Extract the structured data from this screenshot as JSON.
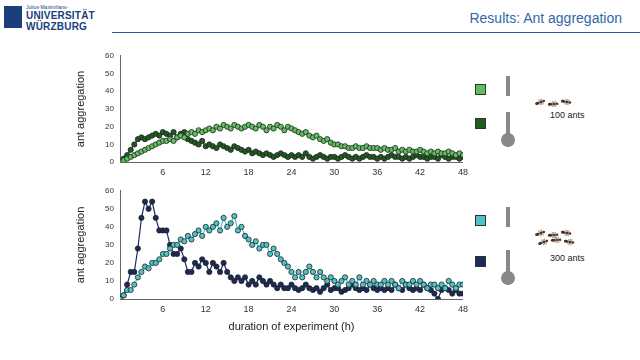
{
  "header": {
    "logo": [
      "Julius-Maximilians-",
      "UNIVERSITÄT",
      "WÜRZBURG"
    ],
    "title": "Results: Ant aggregation"
  },
  "chart_data": [
    {
      "type": "line",
      "ylabel": "ant aggregation",
      "annotations": [
        "100 ants"
      ],
      "x": [
        0,
        0.5,
        1,
        1.5,
        2,
        2.5,
        3,
        3.5,
        4,
        4.5,
        5,
        5.5,
        6,
        6.5,
        7,
        7.5,
        8,
        8.5,
        9,
        9.5,
        10,
        10.5,
        11,
        11.5,
        12,
        12.5,
        13,
        13.5,
        14,
        14.5,
        15,
        15.5,
        16,
        16.5,
        17,
        17.5,
        18,
        18.5,
        19,
        19.5,
        20,
        20.5,
        21,
        21.5,
        22,
        22.5,
        23,
        23.5,
        24,
        24.5,
        25,
        25.5,
        26,
        26.5,
        27,
        27.5,
        28,
        28.5,
        29,
        29.5,
        30,
        30.5,
        31,
        31.5,
        32,
        32.5,
        33,
        33.5,
        34,
        34.5,
        35,
        35.5,
        36,
        36.5,
        37,
        37.5,
        38,
        38.5,
        39,
        39.5,
        40,
        40.5,
        41,
        41.5,
        42,
        42.5,
        43,
        43.5,
        44,
        44.5,
        45,
        45.5,
        46,
        46.5,
        47,
        47.5,
        48
      ],
      "series": [
        {
          "color": "#5fbf5f",
          "values": [
            0,
            1,
            2,
            3,
            4,
            5,
            6,
            7,
            8,
            9,
            10,
            11,
            12,
            12,
            13,
            12,
            14,
            15,
            14,
            16,
            17,
            16,
            18,
            17,
            18,
            19,
            18,
            20,
            19,
            21,
            20,
            19,
            21,
            20,
            19,
            20,
            21,
            20,
            19,
            21,
            20,
            18,
            20,
            19,
            21,
            20,
            18,
            20,
            19,
            18,
            17,
            16,
            17,
            15,
            14,
            15,
            13,
            12,
            13,
            11,
            10,
            10,
            9,
            9,
            8,
            8,
            9,
            8,
            8,
            9,
            8,
            8,
            8,
            7,
            8,
            7,
            7,
            8,
            6,
            7,
            6,
            7,
            6,
            6,
            7,
            6,
            5,
            6,
            5,
            6,
            5,
            5,
            6,
            5,
            4,
            5,
            4
          ]
        },
        {
          "color": "#1f5a1f",
          "values": [
            0,
            2,
            4,
            7,
            10,
            13,
            14,
            13,
            14,
            15,
            16,
            15,
            17,
            16,
            15,
            17,
            14,
            16,
            17,
            13,
            12,
            11,
            10,
            12,
            9,
            10,
            9,
            8,
            10,
            9,
            8,
            7,
            9,
            8,
            7,
            6,
            7,
            5,
            6,
            5,
            4,
            5,
            4,
            3,
            4,
            5,
            4,
            3,
            4,
            3,
            4,
            3,
            5,
            3,
            2,
            3,
            4,
            3,
            2,
            3,
            3,
            2,
            3,
            4,
            3,
            2,
            3,
            2,
            3,
            4,
            3,
            3,
            2,
            3,
            2,
            3,
            4,
            3,
            3,
            2,
            3,
            2,
            3,
            4,
            3,
            3,
            2,
            3,
            3,
            2,
            4,
            3,
            2,
            3,
            3,
            2,
            3
          ]
        }
      ],
      "xlim": [
        0,
        48
      ],
      "xticks": [
        6,
        12,
        18,
        24,
        30,
        36,
        42,
        48
      ],
      "ylim": [
        0,
        60
      ],
      "yticks": [
        0,
        10,
        20,
        30,
        40,
        50,
        60
      ],
      "grid": false,
      "marker": "circle",
      "line_style": "solid"
    },
    {
      "type": "line",
      "xlabel": "duration of experiment (h)",
      "ylabel": "ant aggregation",
      "annotations": [
        "300 ants"
      ],
      "x": [
        0,
        0.5,
        1,
        1.5,
        2,
        2.5,
        3,
        3.5,
        4,
        4.5,
        5,
        5.5,
        6,
        6.5,
        7,
        7.5,
        8,
        8.5,
        9,
        9.5,
        10,
        10.5,
        11,
        11.5,
        12,
        12.5,
        13,
        13.5,
        14,
        14.5,
        15,
        15.5,
        16,
        16.5,
        17,
        17.5,
        18,
        18.5,
        19,
        19.5,
        20,
        20.5,
        21,
        21.5,
        22,
        22.5,
        23,
        23.5,
        24,
        24.5,
        25,
        25.5,
        26,
        26.5,
        27,
        27.5,
        28,
        28.5,
        29,
        29.5,
        30,
        30.5,
        31,
        31.5,
        32,
        32.5,
        33,
        33.5,
        34,
        34.5,
        35,
        35.5,
        36,
        36.5,
        37,
        37.5,
        38,
        38.5,
        39,
        39.5,
        40,
        40.5,
        41,
        41.5,
        42,
        42.5,
        43,
        43.5,
        44,
        44.5,
        45,
        45.5,
        46,
        46.5,
        47,
        47.5,
        48
      ],
      "series": [
        {
          "color": "#4fc4c8",
          "values": [
            0,
            2,
            5,
            5,
            8,
            12,
            15,
            18,
            17,
            20,
            20,
            22,
            25,
            25,
            28,
            30,
            30,
            33,
            32,
            35,
            33,
            36,
            38,
            35,
            40,
            38,
            40,
            42,
            38,
            45,
            40,
            42,
            46,
            38,
            40,
            35,
            33,
            30,
            32,
            28,
            30,
            30,
            25,
            28,
            25,
            22,
            20,
            18,
            15,
            12,
            15,
            12,
            15,
            18,
            15,
            12,
            15,
            12,
            10,
            12,
            10,
            8,
            10,
            12,
            8,
            10,
            8,
            12,
            8,
            10,
            8,
            10,
            8,
            8,
            10,
            8,
            10,
            8,
            6,
            10,
            8,
            8,
            10,
            8,
            10,
            8,
            6,
            8,
            8,
            6,
            8,
            6,
            10,
            8,
            6,
            8,
            8
          ]
        },
        {
          "color": "#1b2a5c",
          "values": [
            0,
            2,
            8,
            15,
            15,
            28,
            45,
            54,
            50,
            54,
            45,
            38,
            38,
            38,
            30,
            25,
            25,
            28,
            22,
            15,
            15,
            20,
            18,
            22,
            20,
            15,
            20,
            18,
            15,
            20,
            15,
            12,
            10,
            12,
            10,
            12,
            8,
            10,
            8,
            12,
            10,
            8,
            10,
            8,
            6,
            8,
            6,
            6,
            8,
            6,
            5,
            6,
            8,
            6,
            5,
            6,
            4,
            6,
            8,
            5,
            6,
            6,
            4,
            5,
            6,
            8,
            6,
            5,
            6,
            5,
            8,
            6,
            5,
            6,
            5,
            6,
            5,
            8,
            6,
            5,
            8,
            6,
            5,
            6,
            5,
            8,
            6,
            5,
            3,
            0,
            5,
            6,
            5,
            3,
            5,
            3,
            3
          ]
        }
      ],
      "xlim": [
        0,
        48
      ],
      "xticks": [
        6,
        12,
        18,
        24,
        30,
        36,
        42,
        48
      ],
      "ylim": [
        0,
        60
      ],
      "yticks": [
        0,
        10,
        20,
        30,
        40,
        50,
        60
      ],
      "grid": false,
      "marker": "circle",
      "line_style": "solid"
    }
  ]
}
